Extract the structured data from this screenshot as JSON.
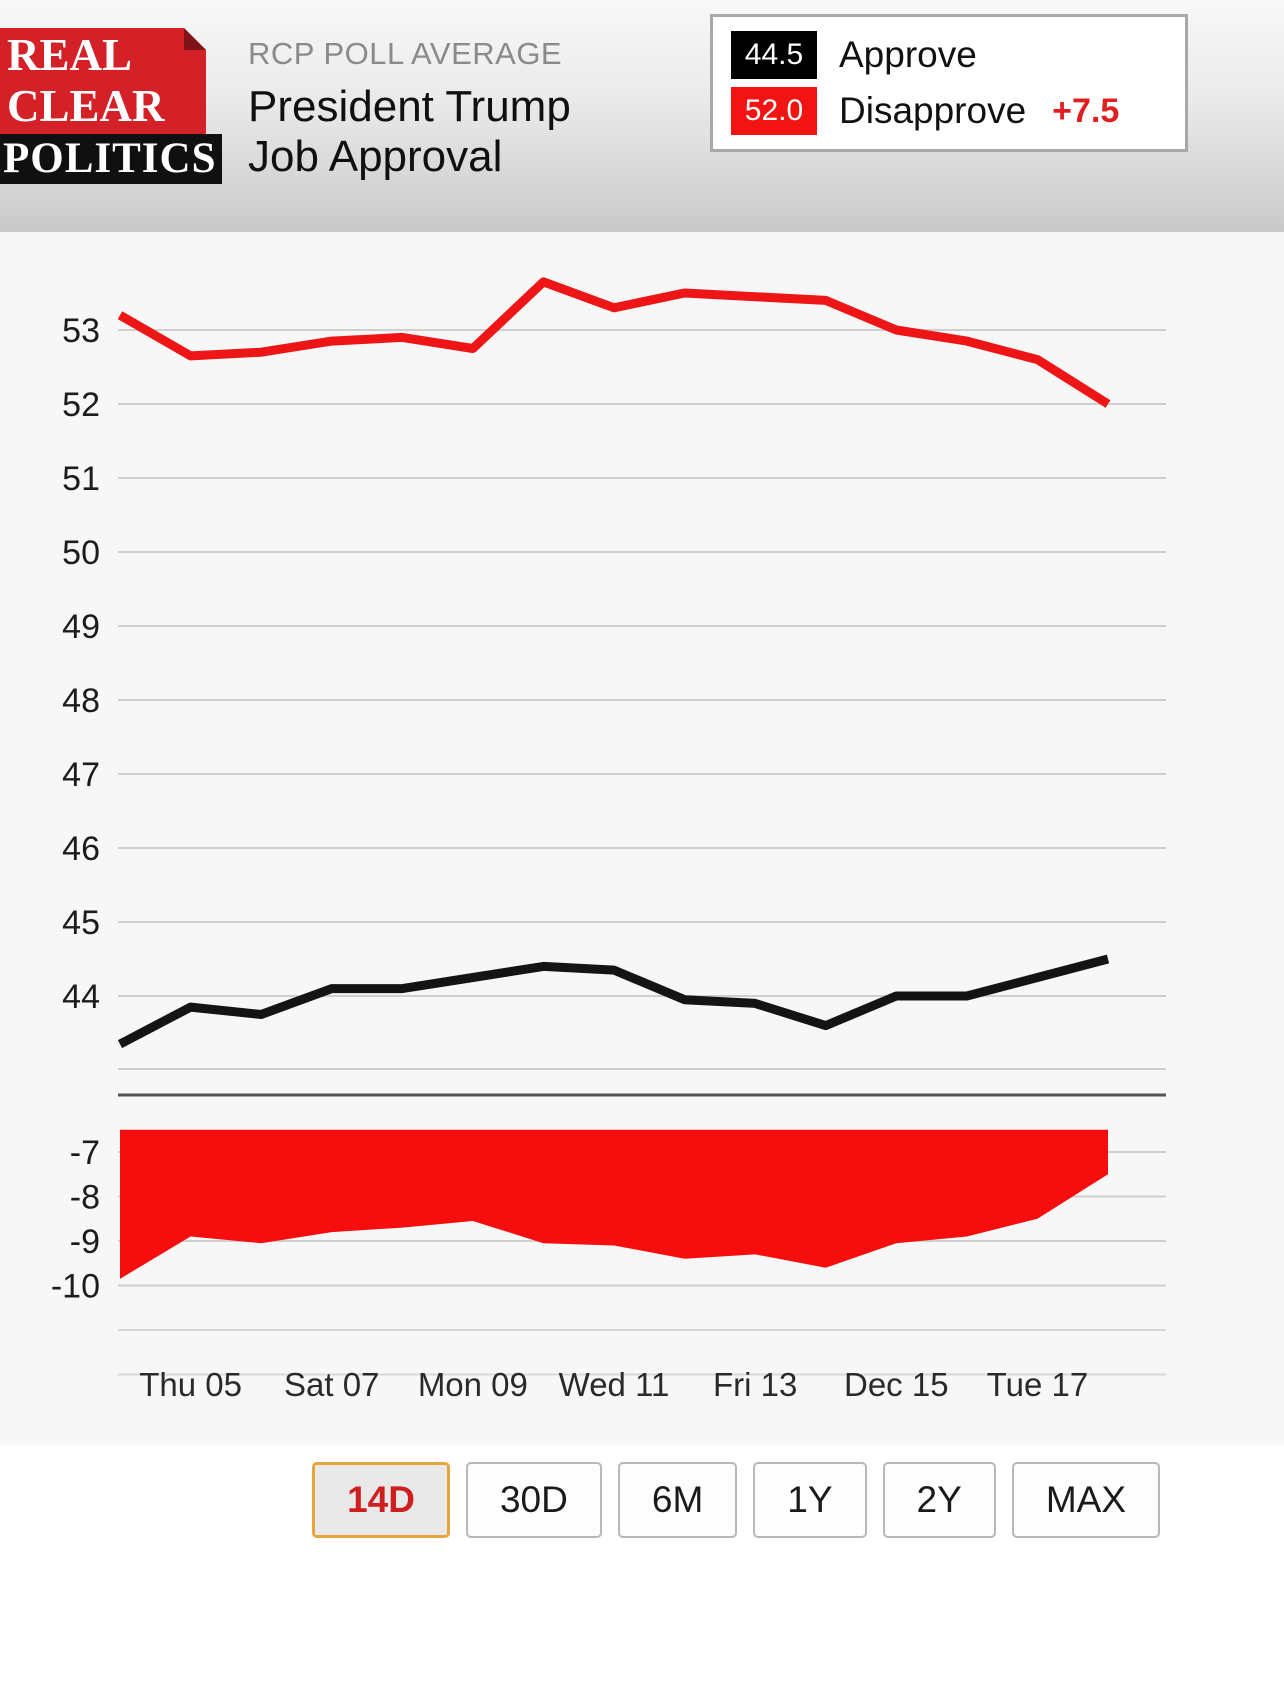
{
  "header": {
    "logo": {
      "line1": "REAL",
      "line2": "CLEAR",
      "line3": "POLITICS"
    },
    "kicker": "RCP POLL AVERAGE",
    "title_line1": "President Trump",
    "title_line2": "Job Approval",
    "legend": {
      "approve": {
        "value": "44.5",
        "label": "Approve"
      },
      "disapprove": {
        "value": "52.0",
        "label": "Disapprove"
      },
      "spread": "+7.5"
    }
  },
  "chart_data": {
    "type": "line",
    "title": "President Trump Job Approval — RCP Poll Average",
    "x_labels": [
      "Thu 05",
      "Sat 07",
      "Mon 09",
      "Wed 11",
      "Fri 13",
      "Dec 15",
      "Tue 17"
    ],
    "upper_axis": {
      "ticks": [
        53,
        52,
        51,
        50,
        49,
        48,
        47,
        46,
        45,
        44
      ],
      "range": [
        42.6,
        54.0
      ]
    },
    "lower_axis": {
      "ticks": [
        -7,
        -8,
        -9,
        -10
      ],
      "range": [
        -12.2,
        -6.5
      ]
    },
    "grid": true,
    "legend_position": "top-right",
    "series": [
      {
        "name": "Disapprove",
        "color": "#ed1515",
        "values": [
          53.2,
          52.65,
          52.7,
          52.85,
          52.9,
          52.75,
          53.65,
          53.3,
          53.5,
          53.45,
          53.4,
          53.0,
          52.85,
          52.6,
          52.0
        ]
      },
      {
        "name": "Approve",
        "color": "#141414",
        "values": [
          43.35,
          43.85,
          43.75,
          44.1,
          44.1,
          44.25,
          44.4,
          44.35,
          43.95,
          43.9,
          43.6,
          44.0,
          44.0,
          44.25,
          44.5
        ]
      }
    ],
    "spread_series": {
      "name": "Spread",
      "color": "#f60d0d",
      "fill_top": -6.5,
      "values": [
        -9.85,
        -8.9,
        -9.05,
        -8.8,
        -8.7,
        -8.55,
        -9.05,
        -9.1,
        -9.4,
        -9.3,
        -9.6,
        -9.05,
        -8.9,
        -8.5,
        -7.5
      ]
    }
  },
  "toolbar": {
    "buttons": [
      {
        "label": "14D",
        "active": true
      },
      {
        "label": "30D",
        "active": false
      },
      {
        "label": "6M",
        "active": false
      },
      {
        "label": "1Y",
        "active": false
      },
      {
        "label": "2Y",
        "active": false
      },
      {
        "label": "MAX",
        "active": false
      }
    ]
  },
  "colors": {
    "brand_red": "#d32127",
    "chart_red": "#ed1515",
    "chart_black": "#141414",
    "spread_red": "#f60d0d",
    "active_border": "#e9a43c",
    "active_text": "#cf2020",
    "grid": "#cfcfcf",
    "chart_bg": "#f7f7f7"
  }
}
